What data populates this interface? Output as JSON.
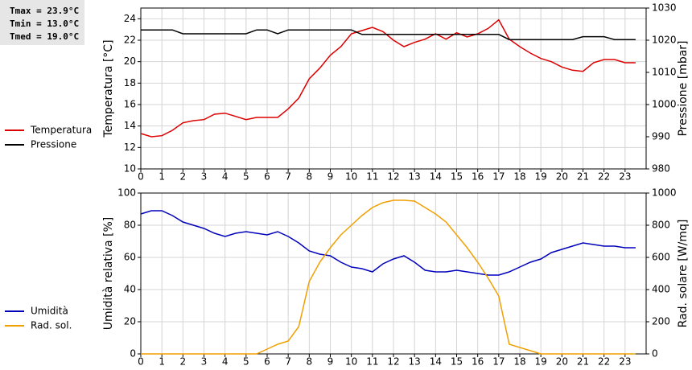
{
  "chart_data": [
    {
      "type": "line",
      "annotations": [
        "Tmax = 23.9°C",
        "Tmin = 13.0°C",
        "Tmed = 19.0°C"
      ],
      "ylabel": "Temperatura [°C]",
      "y2label": "Pressione [mbar]",
      "x": [
        0,
        0.5,
        1,
        1.5,
        2,
        2.5,
        3,
        3.5,
        4,
        4.5,
        5,
        5.5,
        6,
        6.5,
        7,
        7.5,
        8,
        8.5,
        9,
        9.5,
        10,
        10.5,
        11,
        11.5,
        12,
        12.5,
        13,
        13.5,
        14,
        14.5,
        15,
        15.5,
        16,
        16.5,
        17,
        17.5,
        18,
        18.5,
        19,
        19.5,
        20,
        20.5,
        21,
        21.5,
        22,
        22.5,
        23,
        23.5
      ],
      "xlim": [
        0,
        24
      ],
      "xticks": [
        0,
        1,
        2,
        3,
        4,
        5,
        6,
        7,
        8,
        9,
        10,
        11,
        12,
        13,
        14,
        15,
        16,
        17,
        18,
        19,
        20,
        21,
        22,
        23
      ],
      "ylim": [
        10,
        25
      ],
      "yticks": [
        10,
        12,
        14,
        16,
        18,
        20,
        22,
        24
      ],
      "y2lim": [
        980,
        1030
      ],
      "y2ticks": [
        980,
        990,
        1000,
        1010,
        1020,
        1030
      ],
      "grid": true,
      "series": [
        {
          "name": "Temperatura",
          "color": "#dd0000",
          "values": [
            13.3,
            13.0,
            13.1,
            13.6,
            14.3,
            14.5,
            14.6,
            15.1,
            15.2,
            14.9,
            14.6,
            14.8,
            14.8,
            14.8,
            15.6,
            16.6,
            18.4,
            19.4,
            20.6,
            21.4,
            22.6,
            22.9,
            23.2,
            22.8,
            22.0,
            21.4,
            21.8,
            22.1,
            22.6,
            22.1,
            22.7,
            22.3,
            22.6,
            23.1,
            23.9,
            22.1,
            21.4,
            20.8,
            20.3,
            20.0,
            19.5,
            19.2,
            19.1,
            19.9,
            20.2,
            20.2,
            19.9,
            19.9
          ]
        },
        {
          "name": "Pressione",
          "color": "#000000",
          "axis": "y2",
          "values": [
            1023.2,
            1023.2,
            1023.2,
            1023.2,
            1022.0,
            1022.0,
            1022.0,
            1022.0,
            1022.0,
            1022.0,
            1022.0,
            1023.2,
            1023.2,
            1022.0,
            1023.2,
            1023.2,
            1023.2,
            1023.2,
            1023.2,
            1023.2,
            1023.2,
            1021.8,
            1021.8,
            1021.8,
            1021.8,
            1021.8,
            1021.8,
            1021.8,
            1021.8,
            1021.8,
            1021.8,
            1021.8,
            1021.8,
            1021.8,
            1021.8,
            1020.2,
            1020.2,
            1020.2,
            1020.2,
            1020.2,
            1020.2,
            1020.2,
            1021.1,
            1021.1,
            1021.1,
            1020.2,
            1020.2,
            1020.2
          ]
        }
      ]
    },
    {
      "type": "line",
      "ylabel": "Umidità relativa [%]",
      "y2label": "Rad. solare [W/mq]",
      "x": [
        0,
        0.5,
        1,
        1.5,
        2,
        2.5,
        3,
        3.5,
        4,
        4.5,
        5,
        5.5,
        6,
        6.5,
        7,
        7.5,
        8,
        8.5,
        9,
        9.5,
        10,
        10.5,
        11,
        11.5,
        12,
        12.5,
        13,
        13.5,
        14,
        14.5,
        15,
        15.5,
        16,
        16.5,
        17,
        17.5,
        18,
        18.5,
        19,
        19.5,
        20,
        20.5,
        21,
        21.5,
        22,
        22.5,
        23,
        23.5
      ],
      "xlim": [
        0,
        24
      ],
      "xticks": [
        0,
        1,
        2,
        3,
        4,
        5,
        6,
        7,
        8,
        9,
        10,
        11,
        12,
        13,
        14,
        15,
        16,
        17,
        18,
        19,
        20,
        21,
        22,
        23
      ],
      "ylim": [
        0,
        100
      ],
      "yticks": [
        0,
        20,
        40,
        60,
        80,
        100
      ],
      "y2lim": [
        0,
        1000
      ],
      "y2ticks": [
        0,
        200,
        400,
        600,
        800,
        1000
      ],
      "grid": true,
      "series": [
        {
          "name": "Umidità",
          "color": "#0000bb",
          "values": [
            87,
            89,
            89,
            86,
            82,
            80,
            78,
            75,
            73,
            75,
            76,
            75,
            74,
            76,
            73,
            69,
            64,
            62,
            61,
            57,
            54,
            53,
            51,
            56,
            59,
            61,
            57,
            52,
            51,
            51,
            52,
            51,
            50,
            49,
            49,
            51,
            54,
            57,
            59,
            63,
            65,
            67,
            69,
            68,
            67,
            67,
            66,
            66
          ]
        },
        {
          "name": "Rad. sol.",
          "color": "#f0a000",
          "axis": "y2",
          "values": [
            0,
            0,
            0,
            0,
            0,
            0,
            0,
            0,
            0,
            0,
            0,
            0,
            30,
            60,
            80,
            170,
            450,
            570,
            660,
            740,
            800,
            860,
            910,
            940,
            955,
            955,
            950,
            910,
            870,
            820,
            740,
            660,
            570,
            470,
            360,
            60,
            40,
            20,
            0,
            0,
            0,
            0,
            0,
            0,
            0,
            0,
            0,
            0
          ]
        }
      ]
    }
  ]
}
